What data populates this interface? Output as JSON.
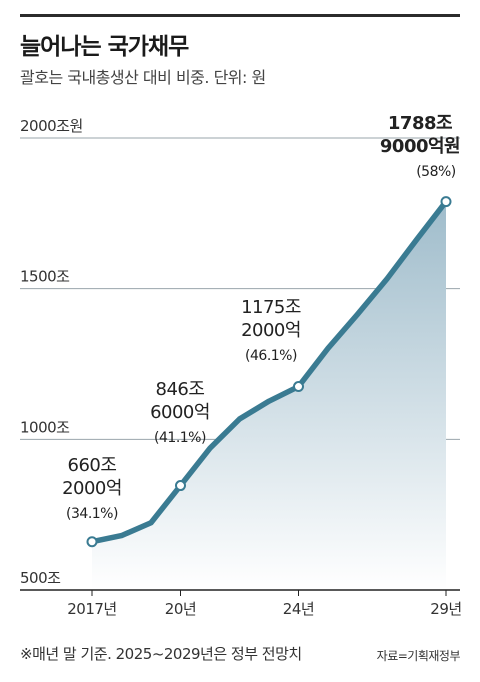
{
  "header": {
    "title": "늘어나는 국가채무",
    "subtitle": "괄호는 국내총생산 대비 비중. 단위: 원"
  },
  "footer": {
    "note": "※매년 말 기준. 2025~2029년은 정부 전망치",
    "source": "자료=기획재정부"
  },
  "colors": {
    "line": "#3a7b92",
    "area_top": "#9fbccb",
    "area_bottom": "#ffffff",
    "grid": "#9aa5ab",
    "axis": "#222222"
  },
  "chart_data": {
    "type": "area",
    "title": "늘어나는 국가채무",
    "ylim": [
      500,
      2000
    ],
    "y_ticks": [
      {
        "value": 2000,
        "label": "2000조원"
      },
      {
        "value": 1500,
        "label": "1500조"
      },
      {
        "value": 1000,
        "label": "1000조"
      },
      {
        "value": 500,
        "label": "500조"
      }
    ],
    "x_ticks": [
      {
        "year": 2017,
        "label": "2017년"
      },
      {
        "year": 2020,
        "label": "20년"
      },
      {
        "year": 2024,
        "label": "24년"
      },
      {
        "year": 2029,
        "label": "29년"
      }
    ],
    "series": [
      {
        "x": [
          2017,
          2018,
          2019,
          2020,
          2021,
          2022,
          2023,
          2024,
          2025,
          2026,
          2027,
          2028,
          2029
        ],
        "values": [
          660.2,
          680.5,
          723.2,
          846.6,
          970.7,
          1067.4,
          1126.7,
          1175.2,
          1301.9,
          1415.0,
          1532.5,
          1662.2,
          1788.9
        ]
      }
    ],
    "highlighted": [
      {
        "year": 2017,
        "value": 660.2,
        "lines": [
          "660조",
          "2000억",
          "(34.1%)"
        ]
      },
      {
        "year": 2020,
        "value": 846.6,
        "lines": [
          "846조",
          "6000억",
          "(41.1%)"
        ]
      },
      {
        "year": 2024,
        "value": 1175.2,
        "lines": [
          "1175조",
          "2000억",
          "(46.1%)"
        ]
      },
      {
        "year": 2029,
        "value": 1788.9,
        "lines": [
          "1788조",
          "9000억원",
          "(58%)"
        ]
      }
    ],
    "grid": true
  }
}
